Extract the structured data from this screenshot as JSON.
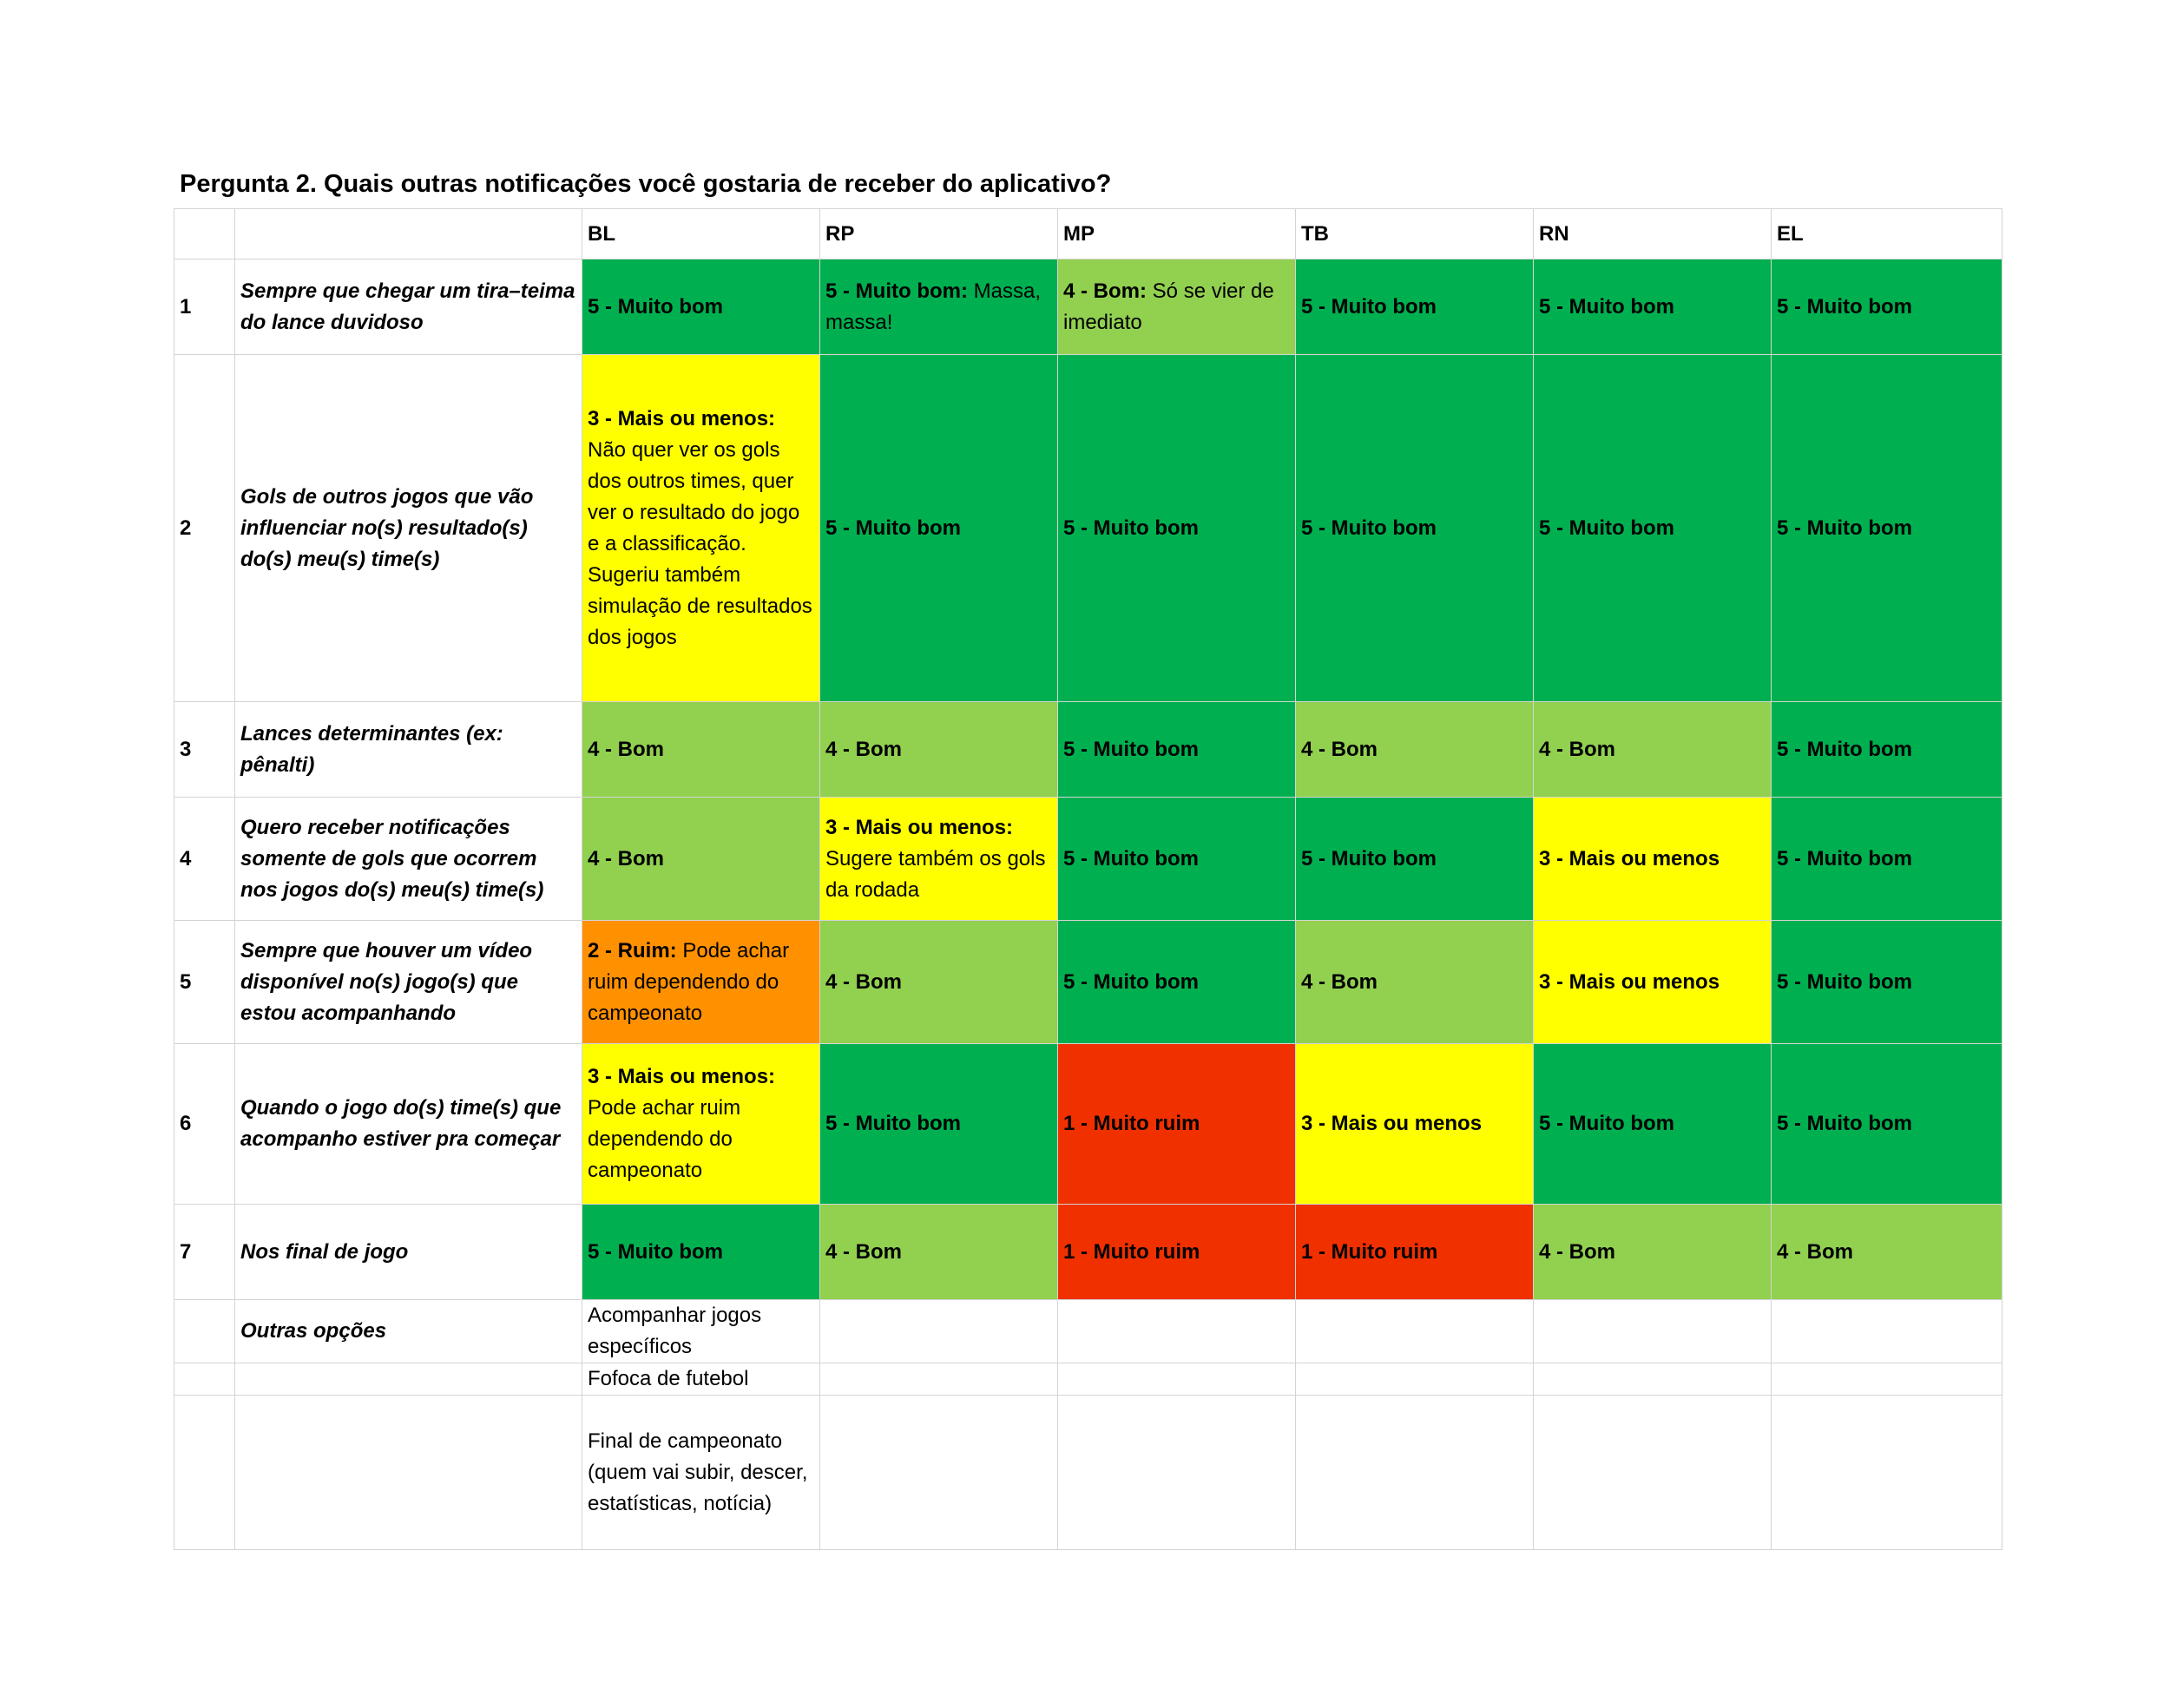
{
  "title": "Pergunta 2. Quais outras notificações você gostaria de receber do aplicativo?",
  "colors": {
    "5": "#00b050",
    "4": "#92d050",
    "3": "#ffff00",
    "2": "#ff9100",
    "1": "#f13000",
    "none": "#ffffff"
  },
  "columns": [
    "BL",
    "RP",
    "MP",
    "TB",
    "RN",
    "EL"
  ],
  "rows": [
    {
      "num": "1",
      "question": "Sempre que chegar um tira–teima do lance duvidoso",
      "cells": [
        {
          "score": "5",
          "bold": "5 - Muito bom",
          "text": ""
        },
        {
          "score": "5",
          "bold": "5 - Muito bom:",
          "text": " Massa, massa!"
        },
        {
          "score": "4",
          "bold": "4 - Bom:",
          "text": " Só se vier de imediato"
        },
        {
          "score": "5",
          "bold": "5 - Muito bom",
          "text": ""
        },
        {
          "score": "5",
          "bold": "5 - Muito bom",
          "text": ""
        },
        {
          "score": "5",
          "bold": "5 - Muito bom",
          "text": ""
        }
      ]
    },
    {
      "num": "2",
      "question": "Gols de outros jogos que vão influenciar no(s) resultado(s) do(s) meu(s) time(s)",
      "cells": [
        {
          "score": "3",
          "bold": "3 - Mais ou menos:",
          "text": " Não quer ver os gols dos outros times, quer ver o resultado do jogo e a classificação. Sugeriu também simulação de resultados dos jogos"
        },
        {
          "score": "5",
          "bold": "5 - Muito bom",
          "text": ""
        },
        {
          "score": "5",
          "bold": "5 - Muito bom",
          "text": ""
        },
        {
          "score": "5",
          "bold": "5 - Muito bom",
          "text": ""
        },
        {
          "score": "5",
          "bold": "5 - Muito bom",
          "text": ""
        },
        {
          "score": "5",
          "bold": "5 - Muito bom",
          "text": ""
        }
      ]
    },
    {
      "num": "3",
      "question": "Lances determinantes (ex: pênalti)",
      "cells": [
        {
          "score": "4",
          "bold": "4 - Bom",
          "text": ""
        },
        {
          "score": "4",
          "bold": "4 - Bom",
          "text": ""
        },
        {
          "score": "5",
          "bold": "5 - Muito bom",
          "text": ""
        },
        {
          "score": "4",
          "bold": "4 - Bom",
          "text": ""
        },
        {
          "score": "4",
          "bold": "4 - Bom",
          "text": ""
        },
        {
          "score": "5",
          "bold": "5 - Muito bom",
          "text": ""
        }
      ]
    },
    {
      "num": "4",
      "question": "Quero receber notificações somente de gols que ocorrem nos jogos do(s) meu(s) time(s)",
      "cells": [
        {
          "score": "4",
          "bold": "4 - Bom",
          "text": ""
        },
        {
          "score": "3",
          "bold": "3 - Mais ou menos:",
          "text": " Sugere também os gols da rodada"
        },
        {
          "score": "5",
          "bold": "5 - Muito bom",
          "text": ""
        },
        {
          "score": "5",
          "bold": "5 - Muito bom",
          "text": ""
        },
        {
          "score": "3",
          "bold": "3 - Mais ou menos",
          "text": ""
        },
        {
          "score": "5",
          "bold": "5 - Muito bom",
          "text": ""
        }
      ]
    },
    {
      "num": "5",
      "question": "Sempre que houver um vídeo disponível no(s) jogo(s) que estou acompanhando",
      "cells": [
        {
          "score": "2",
          "bold": "2 - Ruim:",
          "text": " Pode achar ruim dependendo do campeonato"
        },
        {
          "score": "4",
          "bold": "4 - Bom",
          "text": ""
        },
        {
          "score": "5",
          "bold": "5 - Muito bom",
          "text": ""
        },
        {
          "score": "4",
          "bold": "4 - Bom",
          "text": ""
        },
        {
          "score": "3",
          "bold": "3 - Mais ou menos",
          "text": ""
        },
        {
          "score": "5",
          "bold": "5 - Muito bom",
          "text": ""
        }
      ]
    },
    {
      "num": "6",
      "question": "Quando o jogo do(s) time(s) que acompanho estiver pra começar",
      "cells": [
        {
          "score": "3",
          "bold": "3 - Mais ou menos:",
          "text": " Pode achar ruim dependendo do campeonato"
        },
        {
          "score": "5",
          "bold": "5 - Muito bom",
          "text": ""
        },
        {
          "score": "1",
          "bold": "1 - Muito ruim",
          "text": ""
        },
        {
          "score": "3",
          "bold": "3 - Mais ou menos",
          "text": ""
        },
        {
          "score": "5",
          "bold": "5 - Muito bom",
          "text": ""
        },
        {
          "score": "5",
          "bold": "5 - Muito bom",
          "text": ""
        }
      ]
    },
    {
      "num": "7",
      "question": "Nos final de jogo",
      "cells": [
        {
          "score": "5",
          "bold": "5 - Muito bom",
          "text": ""
        },
        {
          "score": "4",
          "bold": "4 - Bom",
          "text": ""
        },
        {
          "score": "1",
          "bold": "1 - Muito ruim",
          "text": ""
        },
        {
          "score": "1",
          "bold": "1 - Muito ruim",
          "text": ""
        },
        {
          "score": "4",
          "bold": "4 - Bom",
          "text": ""
        },
        {
          "score": "4",
          "bold": "4 - Bom",
          "text": ""
        }
      ]
    }
  ],
  "other": {
    "label": "Outras opções",
    "items": [
      "Acompanhar jogos específicos",
      "Fofoca de futebol",
      "Final de campeonato (quem vai subir, descer, estatísticas, notícia)"
    ]
  }
}
